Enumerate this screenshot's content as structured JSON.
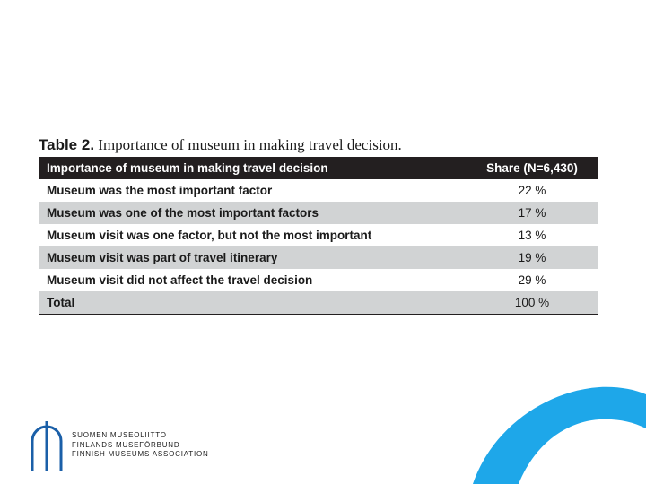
{
  "caption": {
    "number": "Table 2.",
    "title": "Importance of museum in making travel decision."
  },
  "table": {
    "headers": [
      "Importance of museum in making travel decision",
      "Share (N=6,430)"
    ],
    "rows": [
      {
        "label": "Museum was the most important factor",
        "share": "22 %"
      },
      {
        "label": "Museum was one of the most important factors",
        "share": "17 %"
      },
      {
        "label": "Museum visit was one factor, but not the most important",
        "share": "13 %"
      },
      {
        "label": "Museum visit was part of travel itinerary",
        "share": "19 %"
      },
      {
        "label": "Museum visit did not affect the travel decision",
        "share": "29 %"
      },
      {
        "label": "Total",
        "share": "100 %"
      }
    ]
  },
  "organization": {
    "lines": [
      "SUOMEN MUSEOLIITTO",
      "FINLANDS MUSEFÖRBUND",
      "FINNISH MUSEUMS ASSOCIATION"
    ]
  },
  "colors": {
    "header_bg": "#231f20",
    "alt_row_bg": "#d1d3d4",
    "accent_blue": "#1ea7e9",
    "logo_blue": "#1a5fa8"
  }
}
